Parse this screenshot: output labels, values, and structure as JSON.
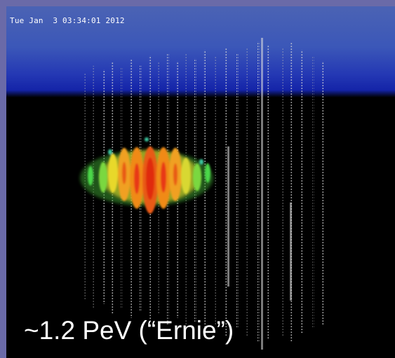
{
  "event": {
    "timestamp": "Tue Jan  3 03:34:01 2012",
    "caption": "~1.2 PeV (“Ernie”)"
  },
  "colors": {
    "frame": "#6a6aa8",
    "sky_top": "#4b63b4",
    "sky_bottom": "#1424a8",
    "string_dots": "#d8d8d8",
    "hit_red": "#e02a10",
    "hit_orange": "#f08a18",
    "hit_yellow": "#e8d82a",
    "hit_green": "#4cd848",
    "hit_teal": "#3cc8a0"
  }
}
